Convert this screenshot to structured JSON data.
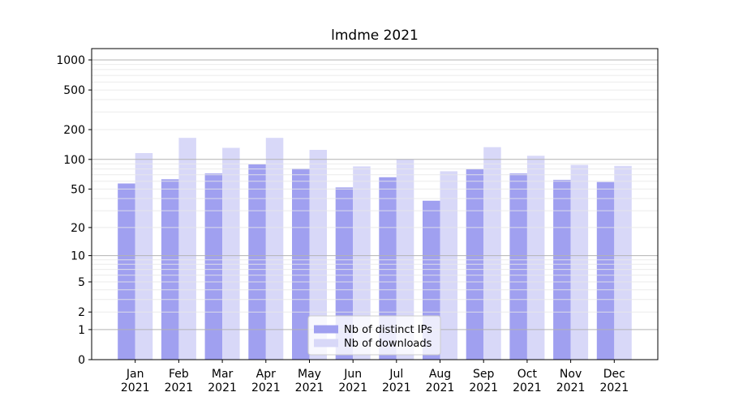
{
  "chart_data": {
    "type": "bar",
    "title": "lmdme 2021",
    "categories": [
      "Jan",
      "Feb",
      "Mar",
      "Apr",
      "May",
      "Jun",
      "Jul",
      "Aug",
      "Sep",
      "Oct",
      "Nov",
      "Dec"
    ],
    "year_label": "2021",
    "series": [
      {
        "name": "Nb of distinct IPs",
        "color": "#a0a0f0",
        "values": [
          57,
          63,
          72,
          89,
          81,
          52,
          66,
          38,
          80,
          72,
          62,
          59
        ]
      },
      {
        "name": "Nb of downloads",
        "color": "#d8d8f8",
        "values": [
          116,
          165,
          131,
          165,
          125,
          85,
          101,
          76,
          133,
          109,
          88,
          86
        ]
      }
    ],
    "y_axis": {
      "scale": "log10(1+x)",
      "ticks": [
        0,
        1,
        2,
        5,
        10,
        20,
        50,
        100,
        200,
        500,
        1000
      ],
      "ylim": [
        0,
        1300
      ]
    },
    "x_axis": {
      "tick_labels_line2": "2021"
    },
    "legend": {
      "position": "lower center",
      "entries": [
        "Nb of distinct IPs",
        "Nb of downloads"
      ]
    },
    "grid": {
      "minor_values": [
        2,
        3,
        4,
        6,
        7,
        8,
        9,
        5,
        20,
        30,
        40,
        50,
        60,
        70,
        80,
        90,
        200,
        300,
        400,
        500,
        600,
        700,
        800,
        900
      ],
      "major_values": [
        1,
        10,
        100,
        1000
      ]
    }
  },
  "colors": {
    "background": "#ffffff",
    "spine": "#000000",
    "grid_minor": "#e8e8e8",
    "grid_major": "#b3b3b3",
    "text": "#000000",
    "legend_border": "#cccccc",
    "legend_bg": "rgba(255,255,255,0.8)"
  }
}
